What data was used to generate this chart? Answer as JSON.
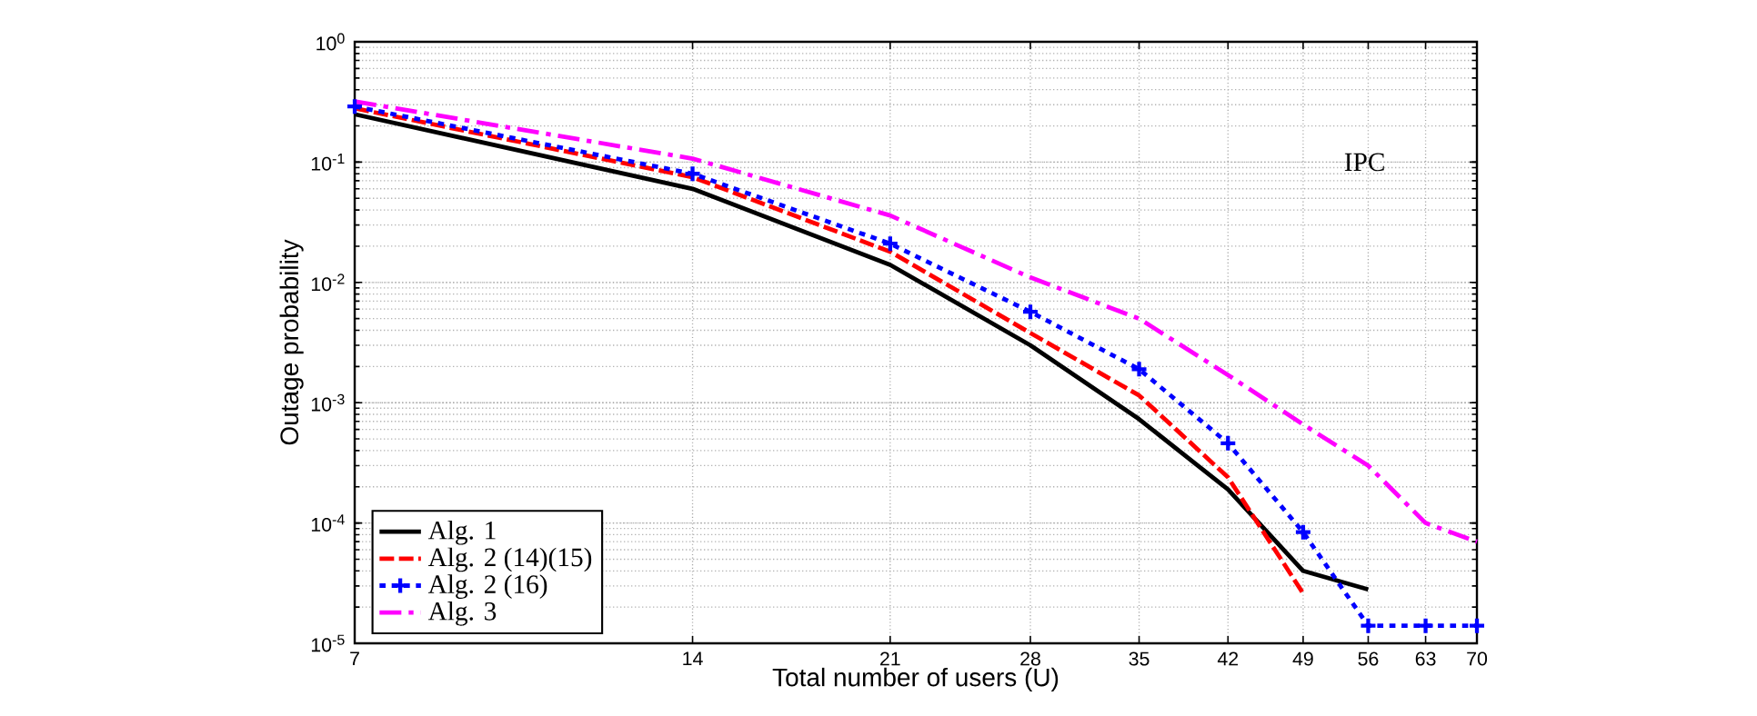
{
  "chart_data": {
    "type": "line",
    "xlabel": "Total number of users (U)",
    "ylabel": "Outage probability",
    "annotations": [
      "IPC"
    ],
    "x": [
      7,
      14,
      21,
      28,
      35,
      42,
      49,
      56,
      63,
      70
    ],
    "log": "xy",
    "grid": true,
    "legend": "bottom left",
    "xlim": [
      7,
      70
    ],
    "xticks": [
      7,
      14,
      21,
      28,
      35,
      42,
      49,
      56,
      63,
      70
    ],
    "ylim": [
      1e-05,
      1
    ],
    "yticks": [
      {
        "value": 1e-05,
        "label": "10$^{-5}$"
      },
      {
        "value": 0.0001,
        "label": "10$^{-4}$"
      },
      {
        "value": 0.001,
        "label": "10$^{-3}$"
      },
      {
        "value": 0.01,
        "label": "10$^{-2}$"
      },
      {
        "value": 0.1,
        "label": "10$^{-1}$"
      },
      {
        "value": 1,
        "label": "10$^{0}$"
      }
    ],
    "series": [
      {
        "name": "Alg. 1",
        "color": "#000000",
        "line_style": "solid",
        "values": [
          0.25,
          0.06,
          0.014,
          0.003,
          0.00073,
          0.00019,
          4e-05,
          2.8e-05,
          null,
          null
        ]
      },
      {
        "name": "Alg. 2 (14)(15)",
        "color": "#ff0000",
        "line_style": "dashed",
        "values": [
          0.28,
          0.075,
          0.018,
          0.0038,
          0.00115,
          0.00024,
          2.6e-05,
          null,
          null,
          null
        ]
      },
      {
        "name": "Alg. 2 (16)",
        "color": "#0000ff",
        "line_style": "dotted",
        "marker": "cross",
        "values": [
          0.29,
          0.08,
          0.021,
          0.0057,
          0.0019,
          0.00046,
          8.4e-05,
          1.4e-05,
          1.4e-05,
          1.4e-05
        ]
      },
      {
        "name": "Alg. 3",
        "color": "#ff00ff",
        "line_style": "dashdot",
        "values": [
          0.32,
          0.107,
          0.036,
          0.011,
          0.005,
          0.0017,
          0.00066,
          0.0003,
          0.0001,
          7e-05
        ]
      }
    ]
  }
}
